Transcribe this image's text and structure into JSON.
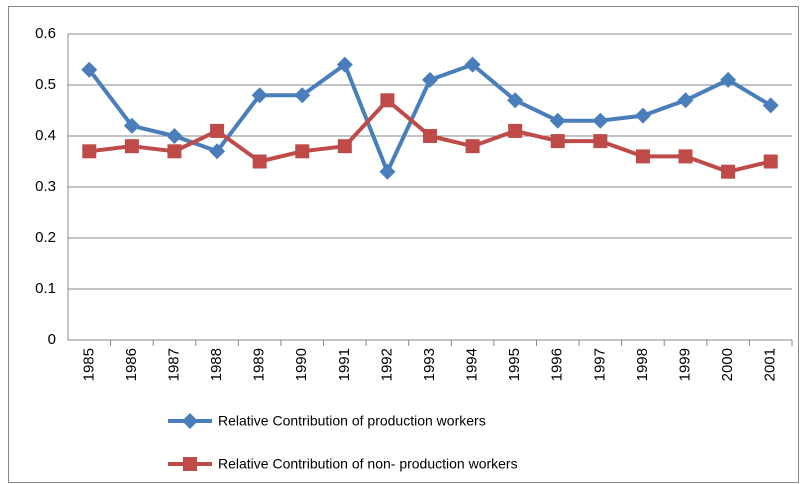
{
  "chart_data": {
    "type": "line",
    "categories": [
      "1985",
      "1986",
      "1987",
      "1988",
      "1989",
      "1990",
      "1991",
      "1992",
      "1993",
      "1994",
      "1995",
      "1996",
      "1997",
      "1998",
      "1999",
      "2000",
      "2001"
    ],
    "series": [
      {
        "name": "Relative Contribution of production workers",
        "color": "#4a7ebb",
        "marker": "diamond",
        "values": [
          0.53,
          0.42,
          0.4,
          0.37,
          0.48,
          0.48,
          0.54,
          0.33,
          0.51,
          0.54,
          0.47,
          0.43,
          0.43,
          0.44,
          0.47,
          0.51,
          0.46
        ]
      },
      {
        "name": "Relative Contribution of non- production workers",
        "color": "#be4b48",
        "marker": "square",
        "values": [
          0.37,
          0.38,
          0.37,
          0.41,
          0.35,
          0.37,
          0.38,
          0.47,
          0.4,
          0.38,
          0.41,
          0.39,
          0.39,
          0.36,
          0.36,
          0.33,
          0.35
        ]
      }
    ],
    "ylim": [
      0,
      0.6
    ],
    "yticks": [
      0,
      0.1,
      0.2,
      0.3,
      0.4,
      0.5,
      0.6
    ],
    "grid": true,
    "legend": "bottom"
  }
}
